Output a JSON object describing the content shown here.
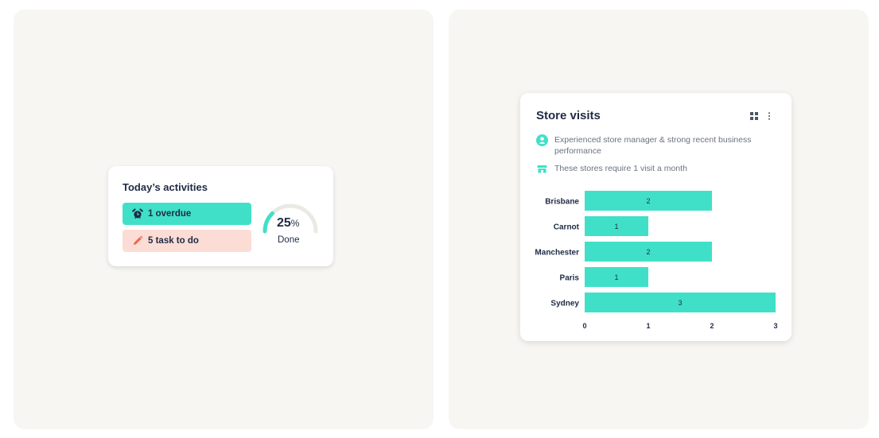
{
  "activities": {
    "title": "Today’s activities",
    "overdue_label": "1 overdue",
    "todo_label": "5 task to do",
    "progress_value": "25",
    "progress_unit": "%",
    "progress_fraction": 0.25,
    "progress_label": "Done",
    "icons": {
      "overdue": "alarm-clock-icon",
      "todo": "pencil-icon"
    }
  },
  "store_visits": {
    "title": "Store visits",
    "note_manager": "Experienced store manager & strong recent business performance",
    "note_frequency": "These stores require 1 visit a month",
    "icons": {
      "manager": "user-icon",
      "store": "store-icon",
      "layout": "grid-icon",
      "menu": "more-vertical-icon"
    }
  },
  "colors": {
    "accent": "#40e0c8",
    "todo_bg": "#fbddd6",
    "todo_icon": "#f0674f",
    "text": "#1f2a44",
    "muted": "#6b7280",
    "panel_bg": "#f7f6f2"
  },
  "chart_data": {
    "type": "bar",
    "orientation": "horizontal",
    "categories": [
      "Brisbane",
      "Carnot",
      "Manchester",
      "Paris",
      "Sydney"
    ],
    "values": [
      2,
      1,
      2,
      1,
      3
    ],
    "xlim": [
      0,
      3
    ],
    "xticks": [
      0,
      1,
      2,
      3
    ],
    "data_labels": true,
    "grid": false
  }
}
